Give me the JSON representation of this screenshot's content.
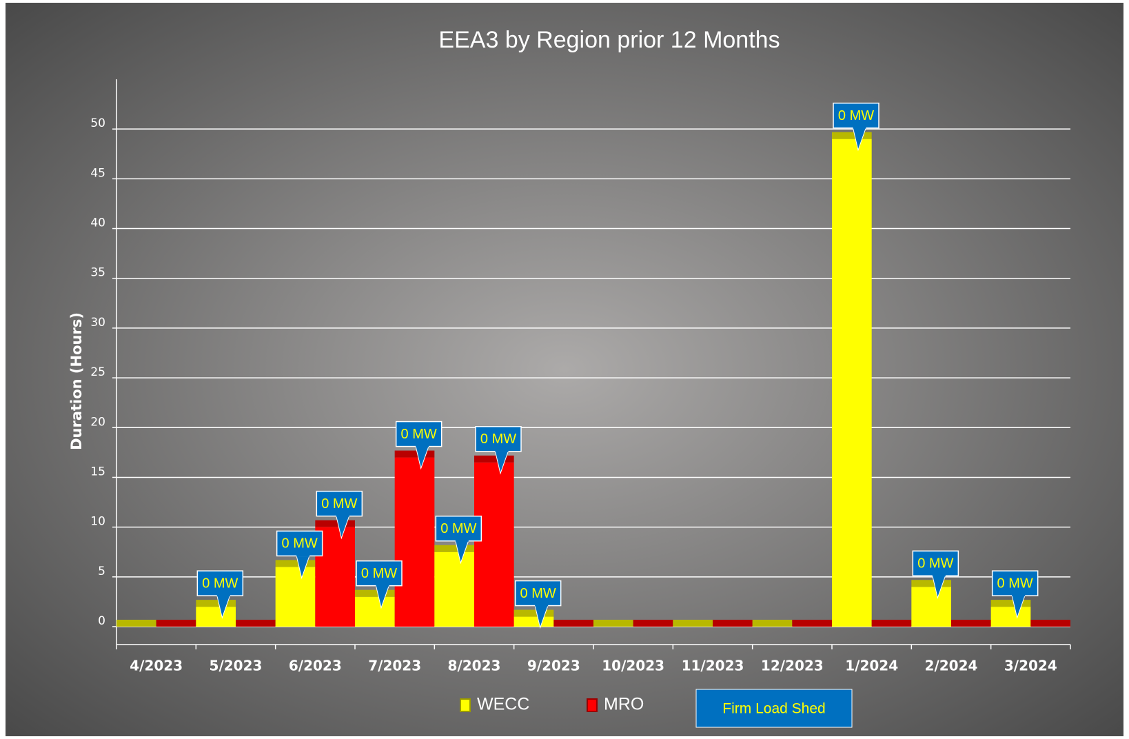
{
  "chart_data": {
    "type": "bar",
    "title": "EEA3 by Region prior 12 Months",
    "y_label": "Duration (Hours)",
    "categories": [
      "4/2023",
      "5/2023",
      "6/2023",
      "7/2023",
      "8/2023",
      "9/2023",
      "10/2023",
      "11/2023",
      "12/2023",
      "1/2024",
      "2/2024",
      "3/2024"
    ],
    "series": [
      {
        "name": "WECC",
        "color": "#ffff00",
        "values": [
          0,
          2,
          6,
          3,
          7.5,
          1,
          0,
          0,
          0,
          49,
          4,
          2
        ],
        "callout_labels": [
          null,
          "0 MW",
          "0 MW",
          "0 MW",
          "0 MW",
          "0 MW",
          null,
          null,
          null,
          "0 MW",
          "0 MW",
          "0 MW"
        ]
      },
      {
        "name": "MRO",
        "color": "#ff0000",
        "values": [
          0,
          0,
          10,
          17,
          16.5,
          0,
          0,
          0,
          0,
          0,
          0,
          0
        ],
        "callout_labels": [
          null,
          null,
          "0 MW",
          "0 MW",
          "0 MW",
          null,
          null,
          null,
          null,
          null,
          null,
          null
        ]
      }
    ],
    "callout_legend": "Firm Load Shed",
    "callout_color": "#0070c0",
    "ylim": [
      0,
      55
    ],
    "yticks": [
      0,
      5,
      10,
      15,
      20,
      25,
      30,
      35,
      40,
      45,
      50
    ],
    "grid": true
  }
}
